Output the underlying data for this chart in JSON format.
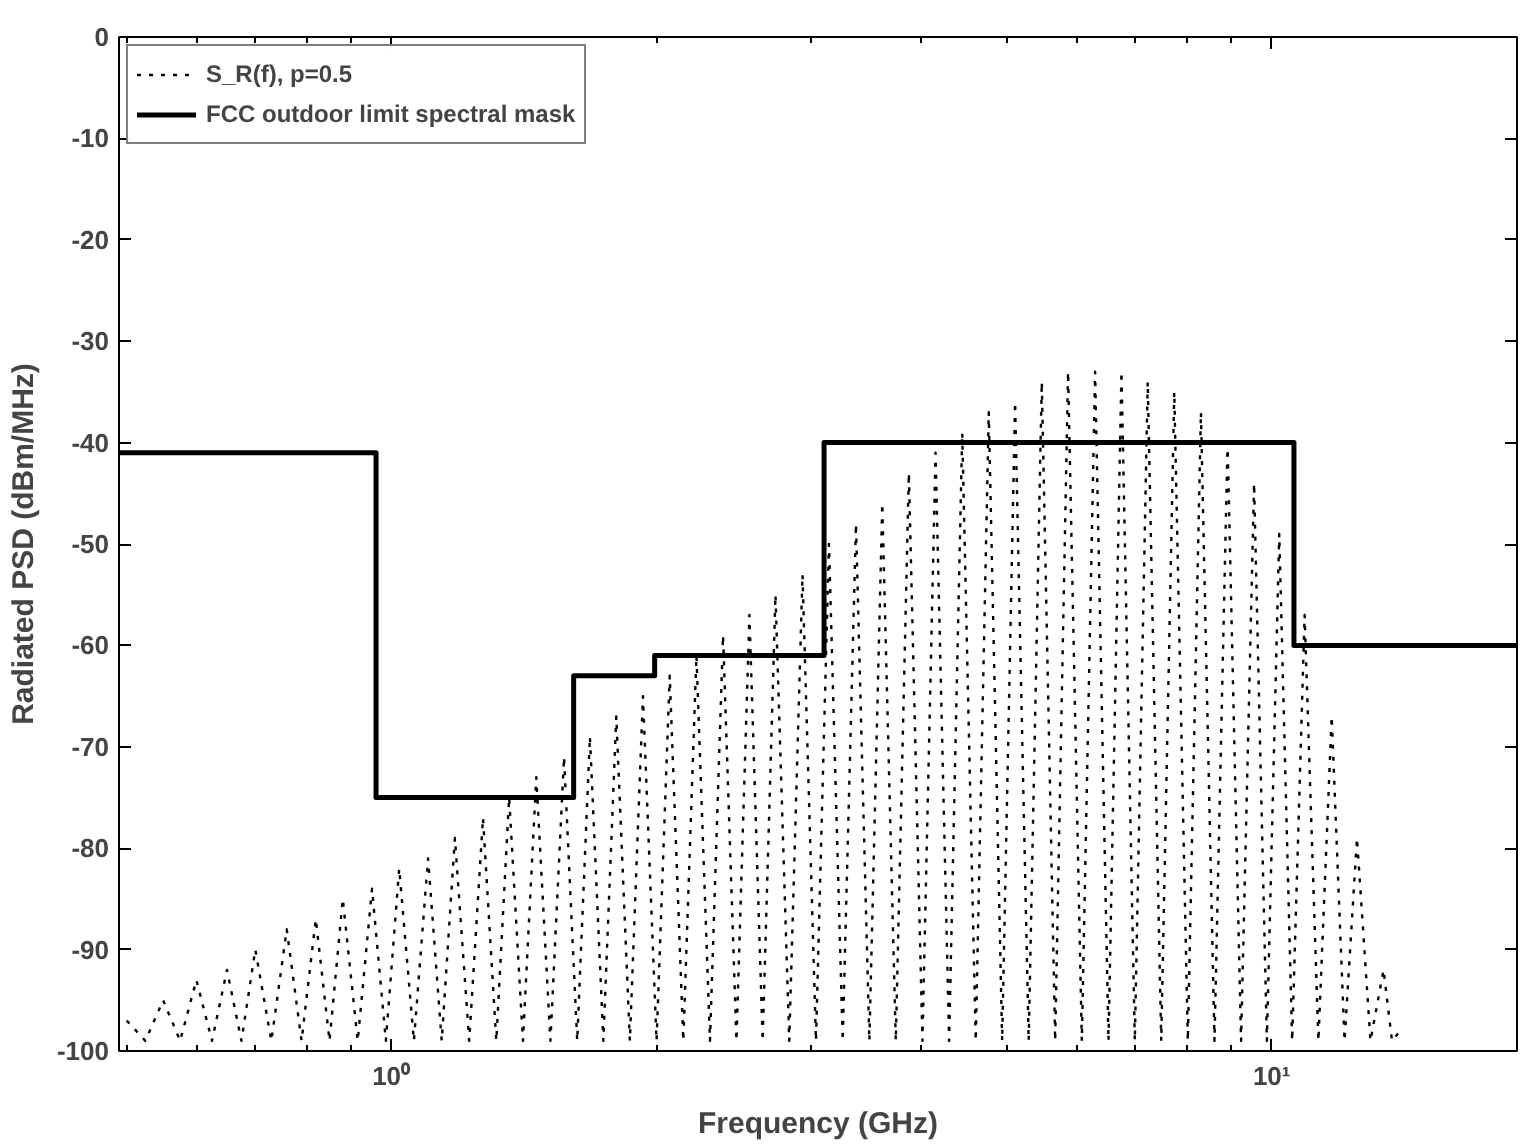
{
  "chart_data": {
    "type": "line",
    "xlabel": "Frequency (GHz)",
    "ylabel": "Radiated PSD (dBm/MHz)",
    "log": "x",
    "grid": false,
    "legend": "top left",
    "marker": "none",
    "xlim": [
      0.49,
      19
    ],
    "xticks": [
      {
        "value": 1,
        "label": "10⁰"
      },
      {
        "value": 10,
        "label": "10¹"
      }
    ],
    "ylim": [
      -100,
      0
    ],
    "yticks": [
      0,
      -10,
      -20,
      -30,
      -40,
      -50,
      -60,
      -70,
      -80,
      -90,
      -100
    ],
    "series": [
      {
        "name": "S_R(f), p=0.5",
        "color": "#000000",
        "line_style": "dotted",
        "x": [
          0.5,
          0.525,
          0.55,
          0.575,
          0.6,
          0.625,
          0.65,
          0.675,
          0.7,
          0.73,
          0.76,
          0.79,
          0.82,
          0.85,
          0.88,
          0.915,
          0.95,
          0.985,
          1.02,
          1.06,
          1.1,
          1.14,
          1.18,
          1.225,
          1.27,
          1.315,
          1.36,
          1.41,
          1.46,
          1.515,
          1.57,
          1.625,
          1.68,
          1.74,
          1.8,
          1.865,
          1.93,
          2.0,
          2.07,
          2.145,
          2.22,
          2.3,
          2.38,
          2.465,
          2.55,
          2.64,
          2.73,
          2.83,
          2.93,
          3.035,
          3.14,
          3.255,
          3.37,
          3.49,
          3.61,
          3.74,
          3.87,
          4.01,
          4.15,
          4.3,
          4.45,
          4.61,
          4.77,
          4.94,
          5.11,
          5.295,
          5.48,
          5.675,
          5.87,
          6.085,
          6.3,
          6.525,
          6.75,
          6.99,
          7.23,
          7.49,
          7.75,
          8.03,
          8.31,
          8.61,
          8.91,
          9.23,
          9.55,
          9.875,
          10.2,
          10.55,
          10.9,
          11.3,
          11.7,
          12.1,
          12.5,
          12.95,
          13.4,
          13.7,
          14.0
        ],
        "values": [
          -97,
          -99,
          -95,
          -99,
          -93,
          -99,
          -92,
          -99,
          -90,
          -99,
          -88,
          -99,
          -87,
          -99,
          -85,
          -99,
          -84,
          -99,
          -82,
          -99,
          -81,
          -99,
          -79,
          -99,
          -77,
          -99,
          -75,
          -99,
          -73,
          -99,
          -71,
          -99,
          -69,
          -99,
          -67,
          -99,
          -65,
          -99,
          -63,
          -99,
          -61,
          -99,
          -59,
          -99,
          -57,
          -99,
          -55,
          -99,
          -53,
          -99,
          -50,
          -99,
          -48,
          -99,
          -46,
          -99,
          -43,
          -99,
          -41,
          -99,
          -39,
          -99,
          -37,
          -99,
          -36,
          -99,
          -34,
          -99,
          -33,
          -99,
          -33,
          -99,
          -33,
          -99,
          -34,
          -99,
          -35,
          -99,
          -37,
          -99,
          -40,
          -99,
          -44,
          -99,
          -49,
          -99,
          -57,
          -99,
          -67,
          -99,
          -79,
          -99,
          -92,
          -99,
          -98
        ]
      },
      {
        "name": "FCC outdoor limit spectral mask",
        "color": "#000000",
        "line_style": "solid",
        "x": [
          0.49,
          0.96,
          0.96,
          1.61,
          1.61,
          1.99,
          1.99,
          3.1,
          3.1,
          10.6,
          10.6,
          19
        ],
        "values": [
          -41,
          -41,
          -75,
          -75,
          -63,
          -63,
          -61,
          -61,
          -40,
          -40,
          -60,
          -60
        ]
      }
    ]
  }
}
